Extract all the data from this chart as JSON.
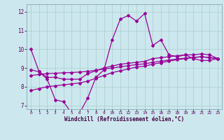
{
  "xlabel": "Windchill (Refroidissement éolien,°C)",
  "background_color": "#cce8ee",
  "grid_color": "#aacccc",
  "line_color": "#990099",
  "xlim": [
    -0.5,
    23.5
  ],
  "ylim": [
    6.8,
    12.4
  ],
  "xticks": [
    0,
    1,
    2,
    3,
    4,
    5,
    6,
    7,
    8,
    9,
    10,
    11,
    12,
    13,
    14,
    15,
    16,
    17,
    18,
    19,
    20,
    21,
    22,
    23
  ],
  "yticks": [
    7,
    8,
    9,
    10,
    11,
    12
  ],
  "line1_x": [
    0,
    1,
    2,
    3,
    4,
    5,
    6,
    7,
    8,
    9,
    10,
    11,
    12,
    13,
    14,
    15,
    16,
    17,
    18,
    19,
    20,
    21,
    22,
    23
  ],
  "line1_y": [
    10.0,
    8.8,
    8.4,
    7.3,
    7.2,
    6.6,
    6.6,
    7.4,
    8.5,
    8.9,
    10.5,
    11.6,
    11.8,
    11.5,
    11.9,
    10.2,
    10.5,
    9.7,
    9.6,
    9.7,
    9.5,
    9.4,
    9.4,
    9.5
  ],
  "line2_x": [
    0,
    1,
    2,
    3,
    4,
    5,
    6,
    7,
    8,
    9,
    10,
    11,
    12,
    13,
    14,
    15,
    16,
    17,
    18,
    19,
    20,
    21,
    22,
    23
  ],
  "line2_y": [
    8.9,
    8.8,
    8.5,
    8.5,
    8.4,
    8.4,
    8.4,
    8.7,
    8.85,
    9.0,
    9.1,
    9.2,
    9.25,
    9.3,
    9.35,
    9.5,
    9.55,
    9.6,
    9.65,
    9.7,
    9.7,
    9.75,
    9.7,
    9.5
  ],
  "line3_x": [
    0,
    1,
    2,
    3,
    4,
    5,
    6,
    7,
    8,
    9,
    10,
    11,
    12,
    13,
    14,
    15,
    16,
    17,
    18,
    19,
    20,
    21,
    22,
    23
  ],
  "line3_y": [
    8.6,
    8.65,
    8.7,
    8.72,
    8.74,
    8.76,
    8.78,
    8.82,
    8.88,
    8.94,
    9.0,
    9.06,
    9.12,
    9.18,
    9.22,
    9.3,
    9.36,
    9.42,
    9.48,
    9.52,
    9.56,
    9.6,
    9.55,
    9.5
  ],
  "line4_x": [
    0,
    1,
    2,
    3,
    4,
    5,
    6,
    7,
    8,
    9,
    10,
    11,
    12,
    13,
    14,
    15,
    16,
    17,
    18,
    19,
    20,
    21,
    22,
    23
  ],
  "line4_y": [
    7.8,
    7.9,
    8.0,
    8.05,
    8.1,
    8.15,
    8.2,
    8.3,
    8.45,
    8.6,
    8.75,
    8.85,
    8.95,
    9.05,
    9.1,
    9.2,
    9.28,
    9.36,
    9.44,
    9.5,
    9.55,
    9.6,
    9.55,
    9.5
  ]
}
